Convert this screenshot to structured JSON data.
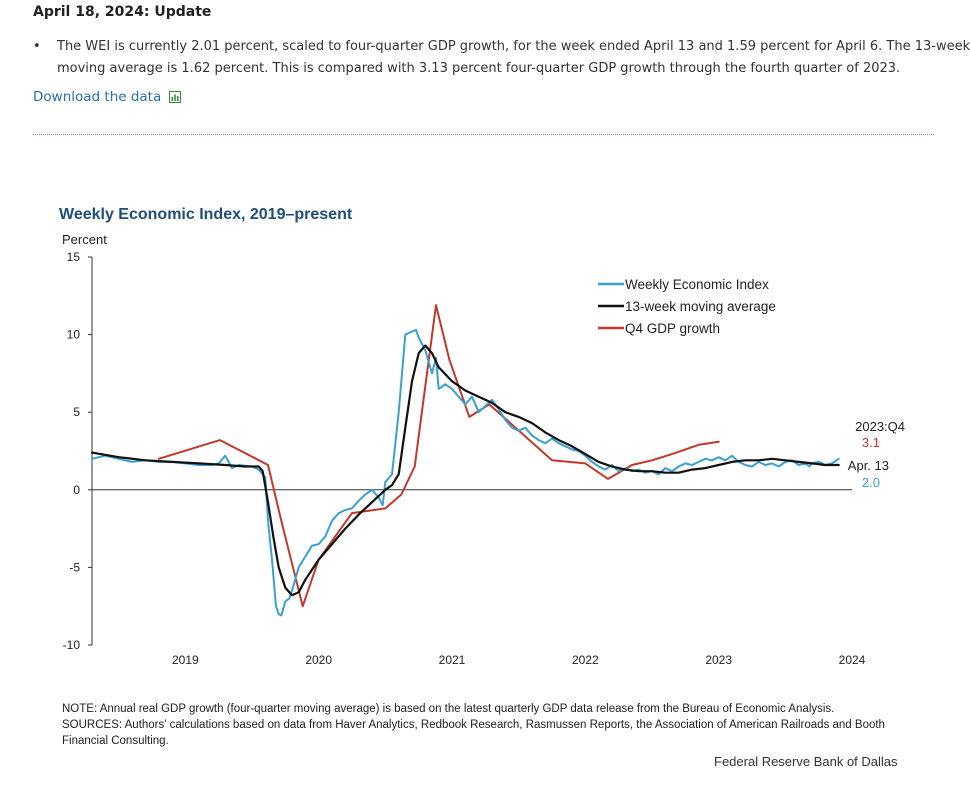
{
  "update": {
    "heading": "April 18, 2024: Update",
    "bullet_line1": "The WEI is currently 2.01 percent, scaled to four-quarter GDP growth, for the week ended April 13 and 1.59 percent for April 6. The 13-week",
    "bullet_line2": "moving average is 1.62 percent. This is compared with 3.13 percent four-quarter GDP growth through the fourth quarter of 2023.",
    "download_label": "Download the data"
  },
  "icons": {
    "spreadsheet": "spreadsheet-icon"
  },
  "colors": {
    "wei": "#3aa0d0",
    "ma": "#111111",
    "gdp": "#c0392b",
    "title": "#1f4e79",
    "link": "#2b6fb0"
  },
  "chart_data": {
    "type": "line",
    "title": "Weekly Economic Index, 2019–present",
    "ylabel": "Percent",
    "ylim": [
      -10,
      15
    ],
    "yticks": [
      "15",
      "10",
      "5",
      "0",
      "-5",
      "-10"
    ],
    "xlim": [
      2018.3,
      2024.0
    ],
    "xticks": [
      "2019",
      "2020",
      "2021",
      "2022",
      "2023",
      "2024"
    ],
    "legend_position": "top-right",
    "series": [
      {
        "name": "Weekly Economic Index",
        "x": [
          2018.3,
          2018.4,
          2018.5,
          2018.6,
          2018.7,
          2018.8,
          2018.9,
          2019.0,
          2019.1,
          2019.2,
          2019.25,
          2019.3,
          2019.35,
          2019.4,
          2019.5,
          2019.55,
          2019.6,
          2019.62,
          2019.65,
          2019.68,
          2019.7,
          2019.72,
          2019.75,
          2019.78,
          2019.8,
          2019.85,
          2019.9,
          2019.95,
          2020.0,
          2020.05,
          2020.1,
          2020.15,
          2020.2,
          2020.25,
          2020.3,
          2020.35,
          2020.4,
          2020.45,
          2020.48,
          2020.5,
          2020.55,
          2020.6,
          2020.65,
          2020.7,
          2020.73,
          2020.75,
          2020.8,
          2020.85,
          2020.88,
          2020.9,
          2020.95,
          2021.0,
          2021.05,
          2021.1,
          2021.15,
          2021.2,
          2021.25,
          2021.3,
          2021.35,
          2021.4,
          2021.45,
          2021.5,
          2021.55,
          2021.6,
          2021.65,
          2021.7,
          2021.75,
          2021.8,
          2021.85,
          2021.9,
          2021.95,
          2022.0,
          2022.05,
          2022.1,
          2022.15,
          2022.2,
          2022.25,
          2022.3,
          2022.35,
          2022.4,
          2022.45,
          2022.5,
          2022.55,
          2022.6,
          2022.65,
          2022.7,
          2022.75,
          2022.8,
          2022.85,
          2022.9,
          2022.95,
          2023.0,
          2023.05,
          2023.1,
          2023.15,
          2023.2,
          2023.25,
          2023.3,
          2023.35,
          2023.4,
          2023.45,
          2023.5,
          2023.55,
          2023.6,
          2023.65,
          2023.68,
          2023.7,
          2023.75,
          2023.8,
          2023.85,
          2023.9
        ],
        "y": [
          2.0,
          2.2,
          2.0,
          1.8,
          1.9,
          1.8,
          1.8,
          1.7,
          1.6,
          1.6,
          1.7,
          2.2,
          1.4,
          1.6,
          1.5,
          1.3,
          0.8,
          -2.0,
          -4.5,
          -7.5,
          -8.0,
          -8.1,
          -7.2,
          -7.0,
          -6.5,
          -5.0,
          -4.3,
          -3.6,
          -3.5,
          -3.0,
          -2.0,
          -1.5,
          -1.3,
          -1.2,
          -0.7,
          -0.3,
          0.0,
          -0.5,
          -1.0,
          0.5,
          1.0,
          5.0,
          10.0,
          10.2,
          10.3,
          9.8,
          9.0,
          7.5,
          8.5,
          6.5,
          6.8,
          6.5,
          6.0,
          5.5,
          6.0,
          5.0,
          5.4,
          5.8,
          5.2,
          4.5,
          4.0,
          3.8,
          4.0,
          3.5,
          3.2,
          3.0,
          3.3,
          3.0,
          2.8,
          2.6,
          2.5,
          2.2,
          1.8,
          1.5,
          1.3,
          1.6,
          1.2,
          1.4,
          1.2,
          1.3,
          1.1,
          1.2,
          1.0,
          1.4,
          1.2,
          1.5,
          1.7,
          1.6,
          1.8,
          2.0,
          1.9,
          2.1,
          1.9,
          2.2,
          1.8,
          1.6,
          1.5,
          1.8,
          1.6,
          1.7,
          1.5,
          1.8,
          1.9,
          1.6,
          1.7,
          1.5,
          1.7,
          1.8,
          1.6,
          1.7,
          2.0
        ]
      },
      {
        "name": "13-week moving average",
        "x": [
          2018.3,
          2018.5,
          2018.7,
          2018.9,
          2019.1,
          2019.3,
          2019.45,
          2019.55,
          2019.58,
          2019.62,
          2019.66,
          2019.7,
          2019.75,
          2019.8,
          2019.85,
          2019.9,
          2020.0,
          2020.1,
          2020.2,
          2020.3,
          2020.4,
          2020.5,
          2020.55,
          2020.6,
          2020.65,
          2020.7,
          2020.75,
          2020.8,
          2020.85,
          2020.9,
          2021.0,
          2021.1,
          2021.2,
          2021.3,
          2021.4,
          2021.5,
          2021.6,
          2021.7,
          2021.8,
          2021.9,
          2022.0,
          2022.1,
          2022.2,
          2022.3,
          2022.4,
          2022.5,
          2022.6,
          2022.7,
          2022.8,
          2022.9,
          2023.0,
          2023.1,
          2023.2,
          2023.3,
          2023.4,
          2023.5,
          2023.6,
          2023.7,
          2023.8,
          2023.9
        ],
        "y": [
          2.4,
          2.1,
          1.9,
          1.8,
          1.7,
          1.6,
          1.5,
          1.5,
          1.2,
          -0.8,
          -3.0,
          -5.0,
          -6.3,
          -6.8,
          -6.6,
          -5.8,
          -4.5,
          -3.5,
          -2.5,
          -1.6,
          -0.8,
          0.0,
          0.3,
          1.0,
          4.0,
          7.0,
          8.8,
          9.3,
          8.8,
          7.9,
          7.0,
          6.4,
          6.0,
          5.6,
          5.0,
          4.7,
          4.3,
          3.7,
          3.2,
          2.8,
          2.3,
          1.8,
          1.5,
          1.3,
          1.2,
          1.2,
          1.1,
          1.1,
          1.3,
          1.4,
          1.6,
          1.8,
          1.9,
          1.9,
          2.0,
          1.9,
          1.8,
          1.7,
          1.6,
          1.6
        ]
      },
      {
        "name": "Q4 GDP growth",
        "x": [
          2018.8,
          2019.26,
          2019.62,
          2019.72,
          2019.88,
          2020.0,
          2020.25,
          2020.5,
          2020.62,
          2020.72,
          2020.88,
          2020.98,
          2021.13,
          2021.28,
          2021.75,
          2022.0,
          2022.17,
          2022.25,
          2022.35,
          2022.5,
          2022.65,
          2022.85,
          2023.0
        ],
        "y": [
          2.0,
          3.2,
          1.6,
          -2.0,
          -7.5,
          -4.5,
          -1.5,
          -1.2,
          -0.3,
          1.5,
          11.9,
          8.4,
          4.7,
          5.5,
          1.9,
          1.7,
          0.7,
          1.1,
          1.6,
          1.9,
          2.3,
          2.9,
          3.1
        ]
      }
    ],
    "end_labels": {
      "gdp_period": "2023:Q4",
      "gdp_value": "3.1",
      "wei_date": "Apr. 13",
      "wei_value": "2.0"
    },
    "note": "NOTE: Annual real GDP growth (four-quarter moving average) is based on the latest quarterly GDP data release from the Bureau of Economic Analysis.",
    "sources": "SOURCES: Authors' calculations based on data from Haver Analytics, Redbook Research, Rasmussen Reports, the Association of American Railroads and Booth Financial Consulting.",
    "credit": "Federal Reserve Bank of Dallas"
  }
}
